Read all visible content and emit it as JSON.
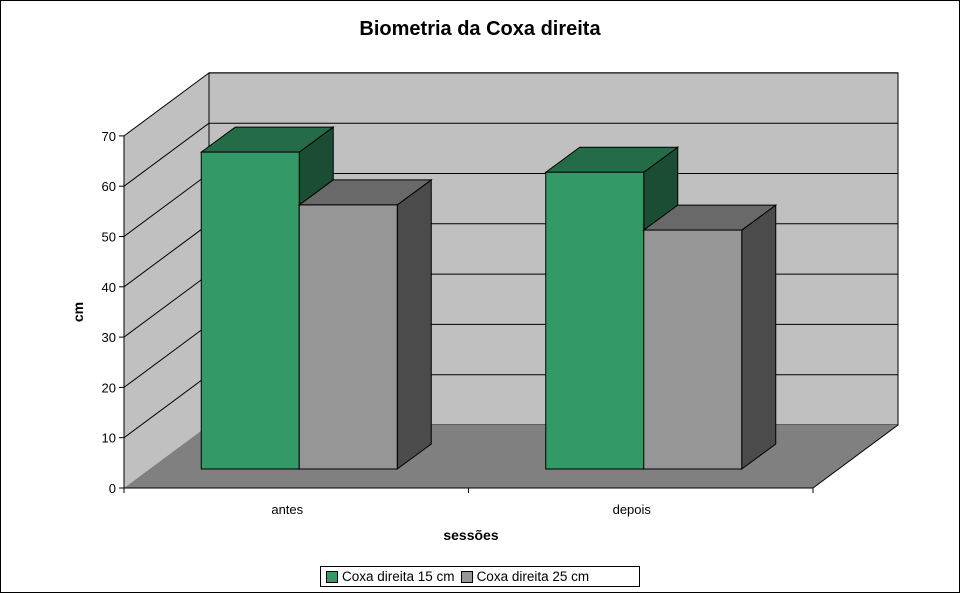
{
  "chart_data": {
    "type": "bar",
    "style": "3d-column",
    "title": "Biometria da Coxa direita",
    "xlabel": "sessões",
    "ylabel": "cm",
    "categories": [
      "antes",
      "depois"
    ],
    "series": [
      {
        "name": "Coxa direita 15 cm",
        "values": [
          63,
          59
        ],
        "color": "#339966"
      },
      {
        "name": "Coxa direita 25 cm",
        "values": [
          52.5,
          47.5
        ],
        "color": "#969696"
      }
    ],
    "ylim": [
      0,
      70
    ],
    "yticks": [
      "0",
      "10",
      "20",
      "30",
      "40",
      "50",
      "60",
      "70"
    ],
    "grid": true,
    "legend": "bottom",
    "colors": {
      "wall": "#c0c0c0",
      "floor": "#808080"
    }
  }
}
